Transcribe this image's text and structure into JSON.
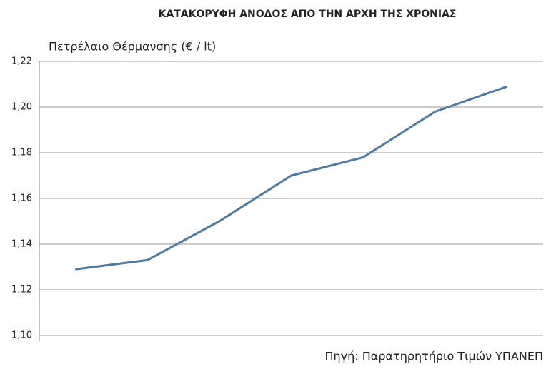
{
  "chart_data": {
    "type": "line",
    "title": "ΚΑΤΑΚΟΡΥΦΗ ΑΝΟΔΟΣ ΑΠΟ ΤΗΝ ΑΡΧΗ ΤΗΣ ΧΡΟΝΙΑΣ",
    "y_label": "Πετρέλαιο Θέρμανσης (€ / lt)",
    "source": "Πηγή: Παρατηρητήριο Τιμών ΥΠΑΝΕΠ",
    "categories": [
      null,
      null,
      null,
      null,
      null,
      null,
      null
    ],
    "values": [
      1.129,
      1.133,
      1.15,
      1.17,
      1.178,
      1.198,
      1.209
    ],
    "color": "#4f7aa1",
    "ylim": [
      1.1,
      1.22
    ],
    "yticks": [
      {
        "value": 1.1,
        "label": "1,10"
      },
      {
        "value": 1.12,
        "label": "1,12"
      },
      {
        "value": 1.14,
        "label": "1,14"
      },
      {
        "value": 1.16,
        "label": "1,16"
      },
      {
        "value": 1.18,
        "label": "1,18"
      },
      {
        "value": 1.2,
        "label": "1,20"
      },
      {
        "value": 1.22,
        "label": "1,22"
      }
    ],
    "grid": true
  }
}
